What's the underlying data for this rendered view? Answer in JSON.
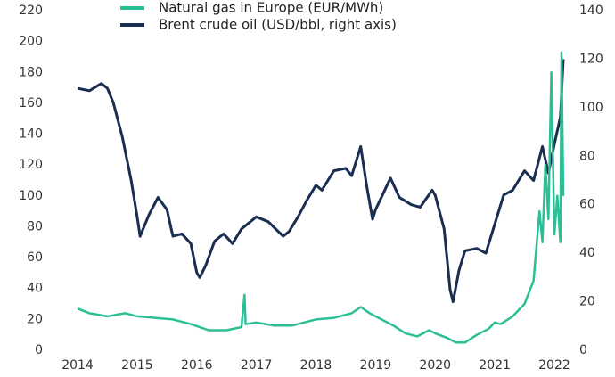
{
  "chart_data": {
    "type": "line",
    "series": [
      {
        "name": "Natural gas in Europe (EUR/MWh)",
        "color": "#2bbf95",
        "axis": "y",
        "x": [
          2014.0,
          2014.2,
          2014.5,
          2014.8,
          2015.0,
          2015.3,
          2015.6,
          2015.9,
          2016.2,
          2016.5,
          2016.75,
          2016.8,
          2016.82,
          2017.0,
          2017.3,
          2017.6,
          2017.9,
          2018.0,
          2018.3,
          2018.6,
          2018.75,
          2018.9,
          2019.0,
          2019.3,
          2019.5,
          2019.7,
          2019.9,
          2020.0,
          2020.2,
          2020.35,
          2020.5,
          2020.7,
          2020.9,
          2021.0,
          2021.1,
          2021.3,
          2021.5,
          2021.65,
          2021.75,
          2021.8,
          2021.85,
          2021.9,
          2021.95,
          2022.0,
          2022.05,
          2022.1,
          2022.12,
          2022.15
        ],
        "values": [
          27,
          24,
          22,
          24,
          22,
          21,
          20,
          17,
          13,
          13,
          15,
          36,
          17,
          18,
          16,
          16,
          19,
          20,
          21,
          24,
          28,
          24,
          22,
          16,
          11,
          9,
          13,
          11,
          8,
          5,
          5,
          10,
          14,
          18,
          17,
          22,
          30,
          45,
          90,
          70,
          120,
          85,
          180,
          75,
          100,
          70,
          193,
          100
        ]
      },
      {
        "name": "Brent crude oil (USD/bbl, right axis)",
        "color": "#1a2e52",
        "axis": "y2",
        "x": [
          2014.0,
          2014.2,
          2014.4,
          2014.5,
          2014.6,
          2014.75,
          2014.9,
          2015.0,
          2015.05,
          2015.2,
          2015.35,
          2015.5,
          2015.6,
          2015.75,
          2015.9,
          2016.0,
          2016.05,
          2016.15,
          2016.3,
          2016.45,
          2016.6,
          2016.75,
          2016.9,
          2017.0,
          2017.2,
          2017.45,
          2017.55,
          2017.7,
          2017.85,
          2018.0,
          2018.1,
          2018.3,
          2018.5,
          2018.6,
          2018.75,
          2018.85,
          2018.95,
          2019.0,
          2019.25,
          2019.4,
          2019.6,
          2019.75,
          2019.95,
          2020.0,
          2020.15,
          2020.25,
          2020.3,
          2020.4,
          2020.5,
          2020.7,
          2020.85,
          2021.0,
          2021.15,
          2021.3,
          2021.5,
          2021.65,
          2021.8,
          2021.9,
          2022.0,
          2022.1,
          2022.15
        ],
        "values": [
          108,
          107,
          110,
          108,
          102,
          88,
          70,
          55,
          47,
          56,
          63,
          58,
          47,
          48,
          44,
          32,
          30,
          35,
          45,
          48,
          44,
          50,
          53,
          55,
          53,
          47,
          49,
          55,
          62,
          68,
          66,
          74,
          75,
          72,
          84,
          68,
          54,
          58,
          71,
          63,
          60,
          59,
          66,
          64,
          50,
          25,
          20,
          33,
          41,
          42,
          40,
          52,
          64,
          66,
          74,
          70,
          84,
          73,
          85,
          96,
          120
        ]
      }
    ],
    "xlim": [
      2013.82,
      2022.15
    ],
    "xticks": [
      2014,
      2015,
      2016,
      2017,
      2018,
      2019,
      2020,
      2021,
      2022
    ],
    "ylim": [
      0,
      220
    ],
    "yticks": [
      0,
      20,
      40,
      60,
      80,
      100,
      120,
      140,
      160,
      180,
      200,
      220
    ],
    "y2lim": [
      0,
      140
    ],
    "y2ticks": [
      0,
      20,
      40,
      60,
      80,
      100,
      120,
      140
    ]
  }
}
